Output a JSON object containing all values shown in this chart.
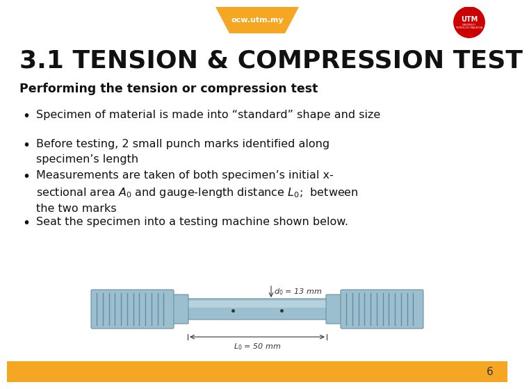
{
  "title": "3.1 TENSION & COMPRESSION TEST",
  "title_fontsize": 26,
  "title_color": "#111111",
  "subtitle": "Performing the tension or compression test",
  "subtitle_fontsize": 12.5,
  "bullet_fontsize": 11.5,
  "background_color": "#ffffff",
  "header_bar_color": "#F5A623",
  "footer_bar_color": "#F5A623",
  "header_text": "ocw.utm.my",
  "footer_page": "6",
  "specimen_label_top": "$d_0$ = 13 mm",
  "specimen_label_bottom": "$L_0$ = 50 mm"
}
